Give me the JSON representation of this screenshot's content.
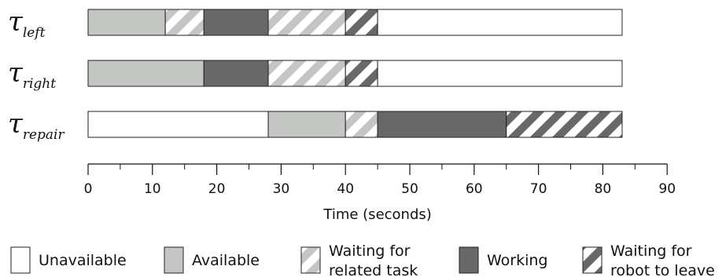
{
  "chart_data": {
    "type": "bar",
    "orientation": "horizontal-stacked",
    "rows": [
      {
        "label_main": "τ",
        "label_sub": "left",
        "segments": [
          {
            "state": "available",
            "start": 0,
            "end": 12
          },
          {
            "state": "waiting_related",
            "start": 12,
            "end": 18
          },
          {
            "state": "working",
            "start": 18,
            "end": 28
          },
          {
            "state": "waiting_related",
            "start": 28,
            "end": 40
          },
          {
            "state": "waiting_robot",
            "start": 40,
            "end": 45
          },
          {
            "state": "unavailable",
            "start": 45,
            "end": 83
          }
        ]
      },
      {
        "label_main": "τ",
        "label_sub": "right",
        "segments": [
          {
            "state": "available",
            "start": 0,
            "end": 18
          },
          {
            "state": "working",
            "start": 18,
            "end": 28
          },
          {
            "state": "waiting_related",
            "start": 28,
            "end": 40
          },
          {
            "state": "waiting_robot",
            "start": 40,
            "end": 45
          },
          {
            "state": "unavailable",
            "start": 45,
            "end": 83
          }
        ]
      },
      {
        "label_main": "τ",
        "label_sub": "repair",
        "segments": [
          {
            "state": "unavailable",
            "start": 0,
            "end": 28
          },
          {
            "state": "available",
            "start": 28,
            "end": 40
          },
          {
            "state": "waiting_related",
            "start": 40,
            "end": 45
          },
          {
            "state": "working",
            "start": 45,
            "end": 65
          },
          {
            "state": "waiting_robot",
            "start": 65,
            "end": 83
          }
        ]
      }
    ],
    "x_axis": {
      "label": "Time (seconds)",
      "range": [
        0,
        90
      ],
      "major_ticks": [
        0,
        10,
        20,
        30,
        40,
        50,
        60,
        70,
        80,
        90
      ],
      "minor_ticks": [
        5,
        15,
        25,
        35,
        45,
        55,
        65,
        75,
        85
      ]
    },
    "legend": {
      "placement": "bottom",
      "items": [
        {
          "state": "unavailable",
          "lines": [
            "Unavailable"
          ]
        },
        {
          "state": "available",
          "lines": [
            "Available"
          ]
        },
        {
          "state": "waiting_related",
          "lines": [
            "Waiting for",
            "related task"
          ]
        },
        {
          "state": "working",
          "lines": [
            "Working"
          ]
        },
        {
          "state": "waiting_robot",
          "lines": [
            "Waiting for",
            "robot to leave"
          ]
        }
      ]
    },
    "colors": {
      "available": "#c4c6c4",
      "working": "#676867",
      "unavailable": "#ffffff",
      "stroke": "#222222"
    }
  }
}
